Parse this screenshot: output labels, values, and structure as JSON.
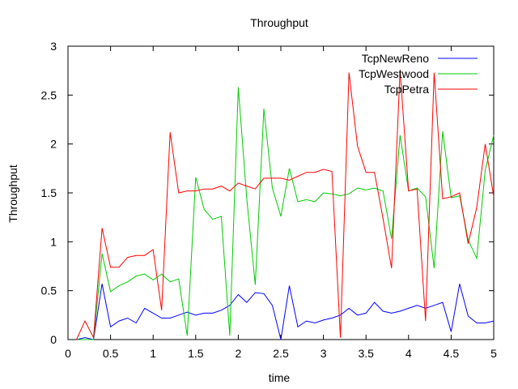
{
  "chart_data": {
    "type": "line",
    "title": "Throughput",
    "xlabel": "time",
    "ylabel": "Throughput",
    "xlim": [
      0,
      5
    ],
    "ylim": [
      0,
      3
    ],
    "xticks": [
      0,
      0.5,
      1,
      1.5,
      2,
      2.5,
      3,
      3.5,
      4,
      4.5,
      5
    ],
    "xtick_labels": [
      "0",
      "0.5",
      "1",
      "1.5",
      "2",
      "2.5",
      "3",
      "3.5",
      "4",
      "4.5",
      "5"
    ],
    "yticks": [
      0,
      0.5,
      1,
      1.5,
      2,
      2.5,
      3
    ],
    "ytick_labels": [
      "0",
      "0.5",
      "1",
      "1.5",
      "2",
      "2.5",
      "3"
    ],
    "grid": false,
    "legend_position": "top-right",
    "x": [
      0.1,
      0.2,
      0.3,
      0.4,
      0.5,
      0.6,
      0.7,
      0.8,
      0.9,
      1.0,
      1.1,
      1.2,
      1.3,
      1.4,
      1.5,
      1.6,
      1.7,
      1.8,
      1.9,
      2.0,
      2.1,
      2.2,
      2.3,
      2.4,
      2.5,
      2.6,
      2.7,
      2.8,
      2.9,
      3.0,
      3.1,
      3.2,
      3.3,
      3.4,
      3.5,
      3.6,
      3.7,
      3.8,
      3.9,
      4.0,
      4.1,
      4.2,
      4.3,
      4.4,
      4.5,
      4.6,
      4.7,
      4.8,
      4.9,
      5.0
    ],
    "series": [
      {
        "name": "TcpNewReno",
        "color": "#0000ff",
        "values": [
          0,
          0.02,
          0,
          0.57,
          0.13,
          0.19,
          0.22,
          0.17,
          0.32,
          0.27,
          0.22,
          0.22,
          0.25,
          0.28,
          0.25,
          0.27,
          0.27,
          0.3,
          0.35,
          0.46,
          0.38,
          0.48,
          0.47,
          0.35,
          0,
          0.55,
          0.13,
          0.19,
          0.17,
          0.2,
          0.22,
          0.25,
          0.32,
          0.25,
          0.27,
          0.38,
          0.29,
          0.27,
          0.29,
          0.32,
          0.35,
          0.32,
          0.35,
          0.38,
          0.08,
          0.57,
          0.24,
          0.17,
          0.17,
          0.19
        ]
      },
      {
        "name": "TcpWestwood",
        "color": "#00cc00",
        "values": [
          0,
          0,
          0,
          0.88,
          0.49,
          0.55,
          0.59,
          0.65,
          0.67,
          0.61,
          0.67,
          0.59,
          0.62,
          0.04,
          1.66,
          1.33,
          1.23,
          1.26,
          0.04,
          2.58,
          1.44,
          0.56,
          2.36,
          1.55,
          1.26,
          1.75,
          1.41,
          1.43,
          1.41,
          1.5,
          1.49,
          1.47,
          1.49,
          1.55,
          1.53,
          1.55,
          1.52,
          1.03,
          2.09,
          1.52,
          1.55,
          1.46,
          0.73,
          2.13,
          1.45,
          1.47,
          1.02,
          0.83,
          1.73,
          2.09
        ]
      },
      {
        "name": "TcpPetra",
        "color": "#ff0000",
        "values": [
          0,
          0.19,
          0.02,
          1.14,
          0.74,
          0.74,
          0.84,
          0.86,
          0.86,
          0.92,
          0.3,
          2.12,
          1.5,
          1.52,
          1.52,
          1.54,
          1.54,
          1.57,
          1.52,
          1.6,
          1.57,
          1.54,
          1.65,
          1.65,
          1.65,
          1.63,
          1.67,
          1.71,
          1.71,
          1.74,
          1.72,
          0.02,
          2.73,
          1.98,
          1.71,
          1.71,
          1.24,
          0.73,
          2.76,
          1.52,
          1.54,
          0.19,
          2.73,
          1.44,
          1.46,
          1.5,
          0.98,
          1.35,
          2.0,
          1.46
        ]
      }
    ]
  }
}
